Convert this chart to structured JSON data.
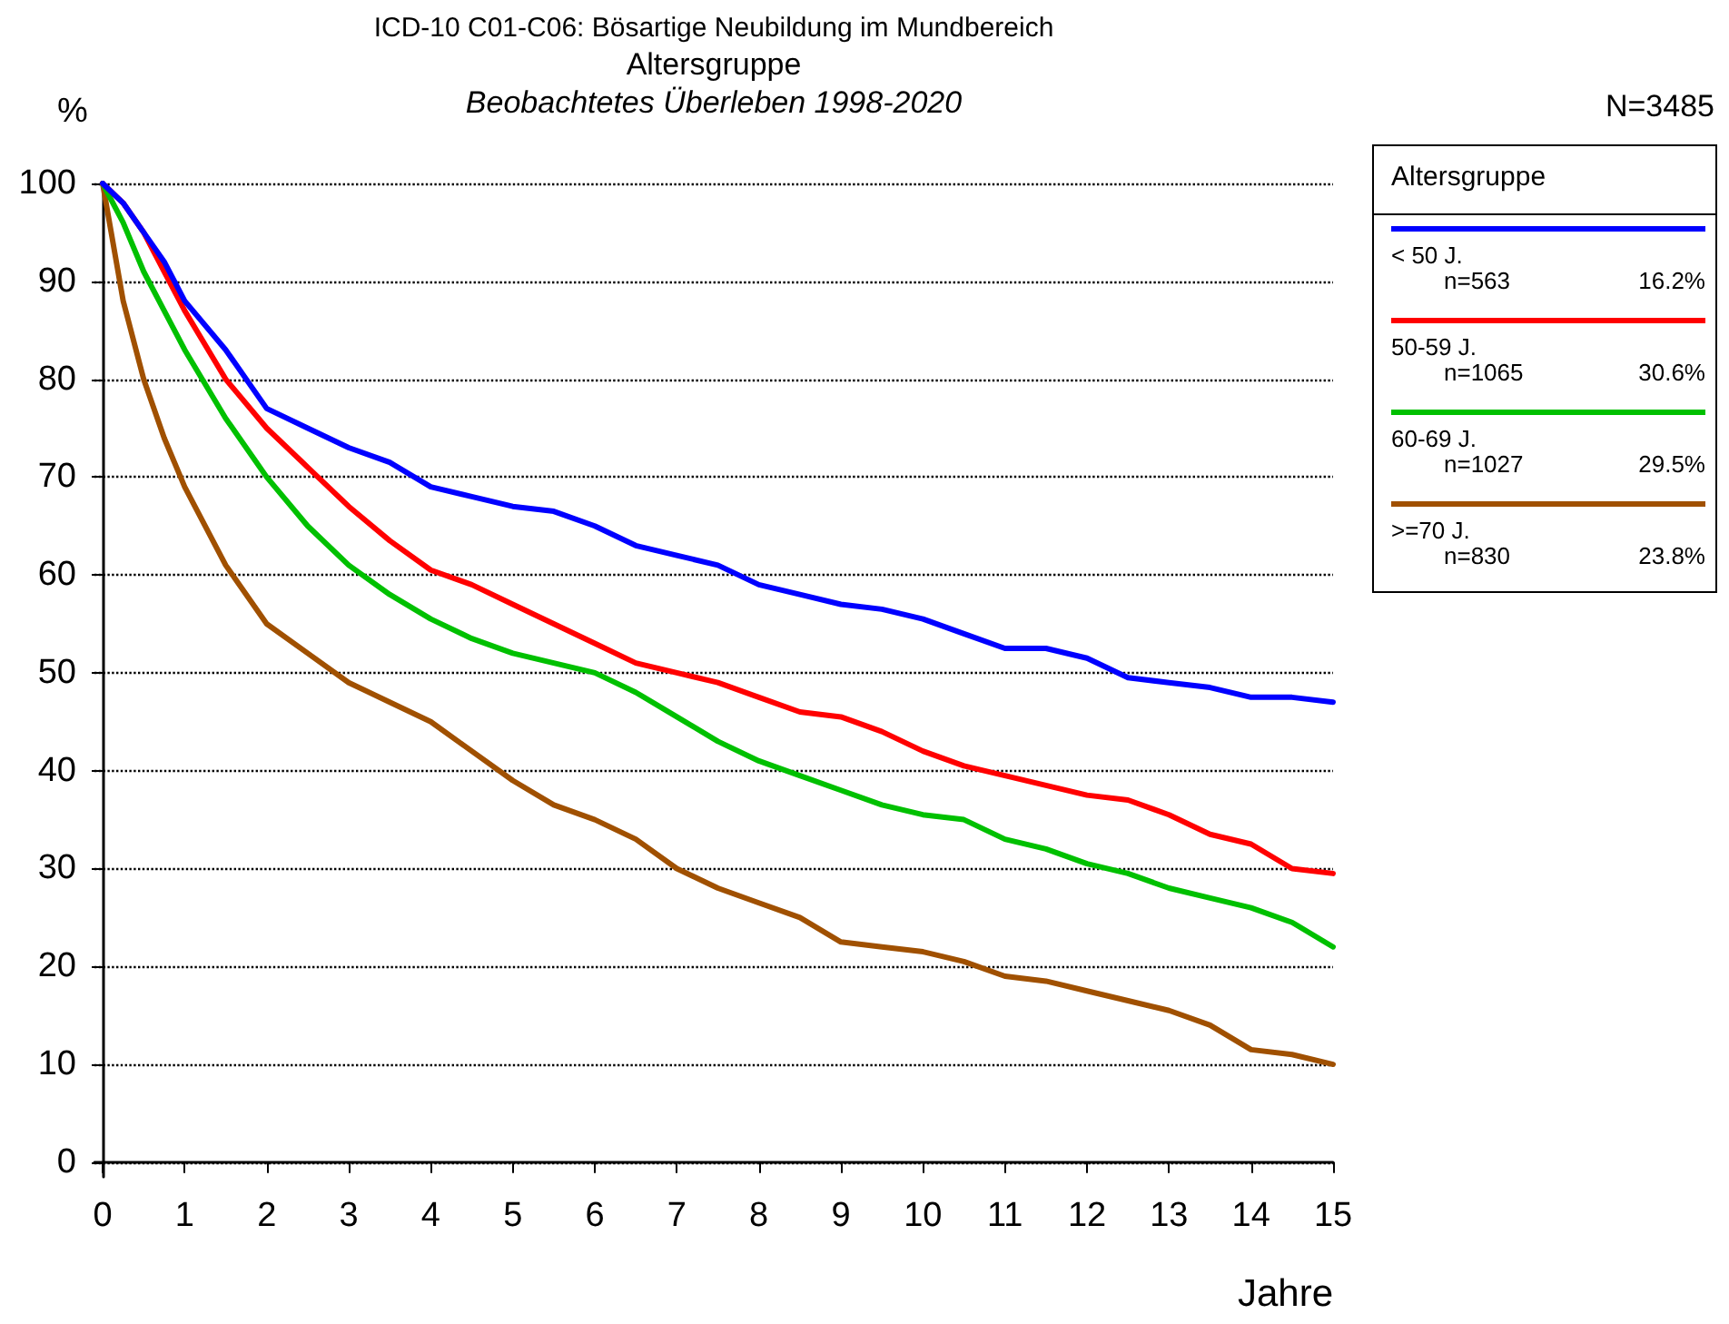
{
  "chart_data": {
    "type": "line",
    "title": "ICD-10 C01-C06: Bösartige Neubildung im Mundbereich",
    "subtitle": "Altersgruppe",
    "xlabel": "Jahre",
    "ylabel": "%",
    "legend_title": "Altersgruppe",
    "annotations": [
      "Beobachtetes Überleben 1998-2020",
      "N=3485",
      "n=563",
      "16.2%",
      "n=1065",
      "30.6%",
      "n=1027",
      "29.5%",
      "n=830",
      "23.8%"
    ],
    "x": [
      0,
      0.25,
      0.5,
      0.75,
      1,
      1.5,
      2,
      2.5,
      3,
      3.5,
      4,
      4.5,
      5,
      5.5,
      6,
      6.5,
      7,
      7.5,
      8,
      8.5,
      9,
      9.5,
      10,
      10.5,
      11,
      11.5,
      12,
      12.5,
      13,
      13.5,
      14,
      14.5,
      15
    ],
    "series": [
      {
        "name": "< 50 J.",
        "color": "#0000ff",
        "values": [
          100,
          98,
          95,
          92,
          88,
          83,
          77,
          75,
          73,
          71.5,
          69,
          68,
          67,
          66.5,
          65,
          63,
          62,
          61,
          59,
          58,
          57,
          56.5,
          55.5,
          54,
          52.5,
          52.5,
          51.5,
          49.5,
          49,
          48.5,
          47.5,
          47.5,
          47
        ]
      },
      {
        "name": "50-59 J.",
        "color": "#ff0000",
        "values": [
          100,
          98,
          95,
          91,
          87,
          80,
          75,
          71,
          67,
          63.5,
          60.5,
          59,
          57,
          55,
          53,
          51,
          50,
          49,
          47.5,
          46,
          45.5,
          44,
          42,
          40.5,
          39.5,
          38.5,
          37.5,
          37,
          35.5,
          33.5,
          32.5,
          30,
          29.5
        ]
      },
      {
        "name": "60-69 J.",
        "color": "#00c000",
        "values": [
          100,
          96,
          91,
          87,
          83,
          76,
          70,
          65,
          61,
          58,
          55.5,
          53.5,
          52,
          51,
          50,
          48,
          45.5,
          43,
          41,
          39.5,
          38,
          36.5,
          35.5,
          35,
          33,
          32,
          30.5,
          29.5,
          28,
          27,
          26,
          24.5,
          22
        ]
      },
      {
        "name": ">=70 J.",
        "color": "#a05000",
        "values": [
          100,
          88,
          80,
          74,
          69,
          61,
          55,
          52,
          49,
          47,
          45,
          42,
          39,
          36.5,
          35,
          33,
          30,
          28,
          26.5,
          25,
          22.5,
          22,
          21.5,
          20.5,
          19,
          18.5,
          17.5,
          16.5,
          15.5,
          14,
          11.5,
          11,
          10
        ]
      }
    ],
    "xlim": [
      -0.1,
      15
    ],
    "xticks": [
      0,
      1,
      2,
      3,
      4,
      5,
      6,
      7,
      8,
      9,
      10,
      11,
      12,
      13,
      14,
      15
    ],
    "ylim": [
      -1.5,
      100
    ],
    "yticks": [
      0,
      10,
      20,
      30,
      40,
      50,
      60,
      70,
      80,
      90,
      100
    ],
    "grid": "y",
    "legend": "right",
    "marker": "none",
    "line_style": "solid"
  }
}
